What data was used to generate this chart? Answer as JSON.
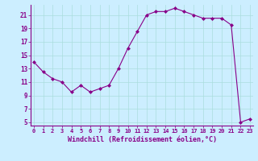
{
  "x": [
    0,
    1,
    2,
    3,
    4,
    5,
    6,
    7,
    8,
    9,
    10,
    11,
    12,
    13,
    14,
    15,
    16,
    17,
    18,
    19,
    20,
    21,
    22,
    23
  ],
  "y": [
    14.0,
    12.5,
    11.5,
    11.0,
    9.5,
    10.5,
    9.5,
    10.0,
    10.5,
    13.0,
    16.0,
    18.5,
    21.0,
    21.5,
    21.5,
    22.0,
    21.5,
    21.0,
    20.5,
    20.5,
    20.5,
    19.5,
    5.0,
    5.5
  ],
  "line_color": "#880088",
  "marker": "D",
  "marker_size": 2,
  "bg_color": "#cceeff",
  "grid_color": "#aadddd",
  "xlabel": "Windchill (Refroidissement éolien,°C)",
  "xlabel_color": "#880088",
  "tick_color": "#880088",
  "yticks": [
    5,
    7,
    9,
    11,
    13,
    15,
    17,
    19,
    21
  ],
  "xticks": [
    0,
    1,
    2,
    3,
    4,
    5,
    6,
    7,
    8,
    9,
    10,
    11,
    12,
    13,
    14,
    15,
    16,
    17,
    18,
    19,
    20,
    21,
    22,
    23
  ],
  "ylim": [
    4.5,
    22.5
  ],
  "xlim": [
    -0.3,
    23.3
  ]
}
